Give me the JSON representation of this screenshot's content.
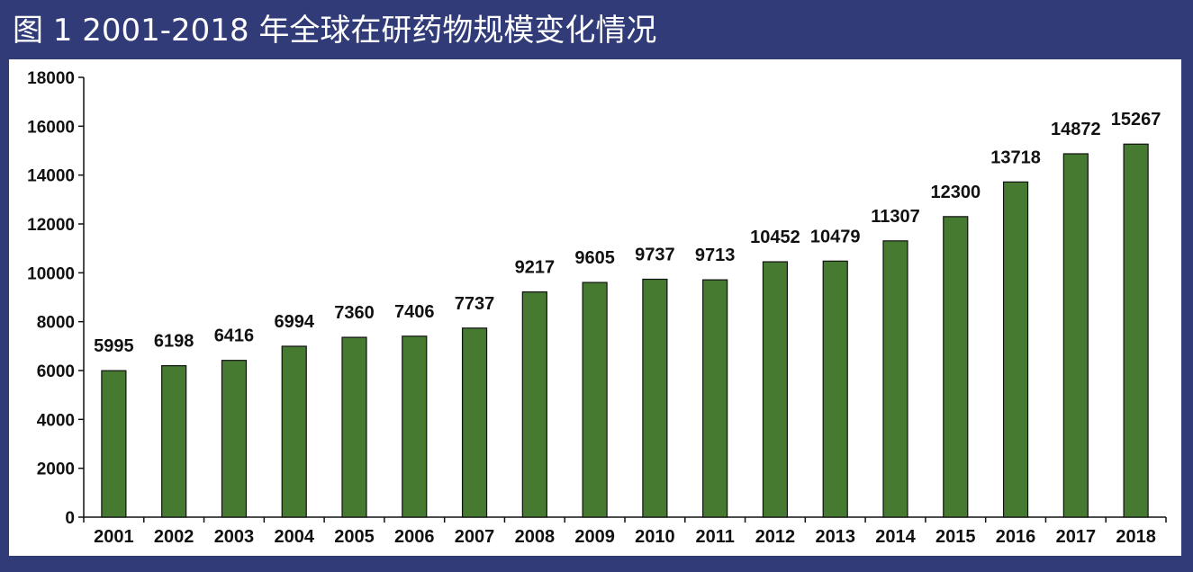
{
  "title": "图 1    2001-2018 年全球在研药物规模变化情况",
  "colors": {
    "background": "#303b78",
    "panel": "#ffffff",
    "bar": "#457a30",
    "text": "#111111"
  },
  "chart_data": {
    "type": "bar",
    "title": "图 1    2001-2018 年全球在研药物规模变化情况",
    "xlabel": "",
    "ylabel": "",
    "categories": [
      "2001",
      "2002",
      "2003",
      "2004",
      "2005",
      "2006",
      "2007",
      "2008",
      "2009",
      "2010",
      "2011",
      "2012",
      "2013",
      "2014",
      "2015",
      "2016",
      "2017",
      "2018"
    ],
    "values": [
      5995,
      6198,
      6416,
      6994,
      7360,
      7406,
      7737,
      9217,
      9605,
      9737,
      9713,
      10452,
      10479,
      11307,
      12300,
      13718,
      14872,
      15267
    ],
    "ylim": [
      0,
      18000
    ],
    "yticks": [
      0,
      2000,
      4000,
      6000,
      8000,
      10000,
      12000,
      14000,
      16000,
      18000
    ],
    "grid": false,
    "legend": "none",
    "data_labels": true
  }
}
